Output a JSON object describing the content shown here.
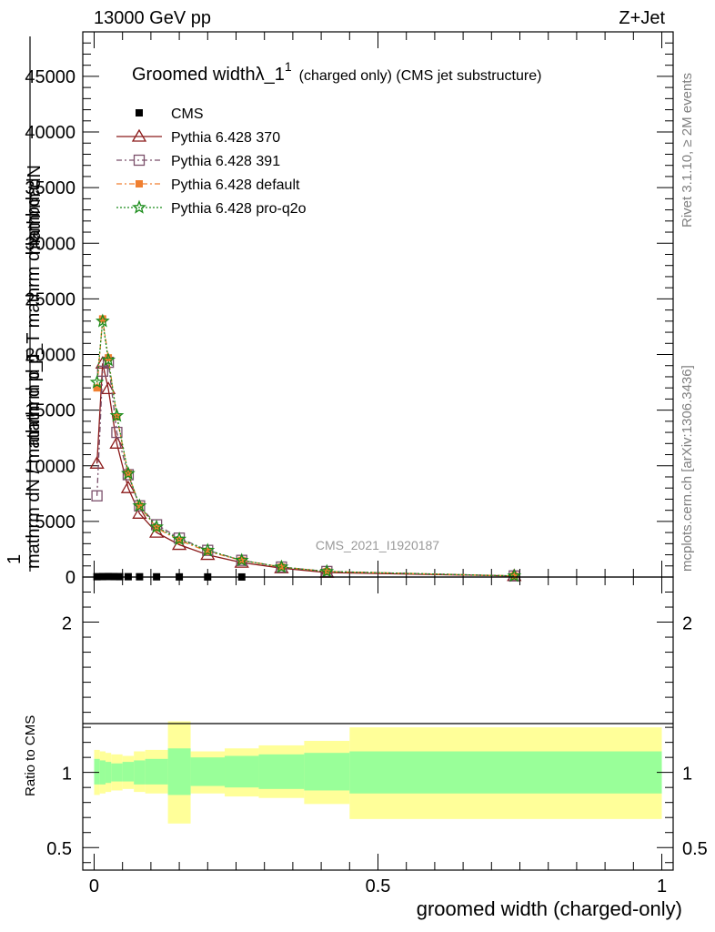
{
  "header": {
    "left": "13000 GeV pp",
    "right": "Z+Jet"
  },
  "side": {
    "rivet": "Rivet 3.1.10, ≥ 2M events",
    "mcplots": "mcplots.cern.ch [arXiv:1306.3436]"
  },
  "chart_data": [
    {
      "type": "line",
      "title": "Groomed width",
      "title_symbol": "λ_1",
      "title_sup": "1",
      "title_suffix": "(charged only) (CMS jet substructure)",
      "watermark": "CMS_2021_I1920187",
      "ylabel_numerator": "1",
      "ylabel_top": "mathrm dN",
      "ylabel_mid": "mathrm d p_T mathrm d lambda",
      "ylabel_bottom": "mathrm dN / mathrm d p_T",
      "ylabel_bottom2": "mathrm dN / mathrm d p_T",
      "xlim": [
        -0.02,
        1.02
      ],
      "ylim": [
        0,
        49000
      ],
      "yticks": [
        0,
        5000,
        10000,
        15000,
        20000,
        25000,
        30000,
        35000,
        40000,
        45000
      ],
      "ytick_labels": [
        "0",
        "5000",
        "10000",
        "15000",
        "20000",
        "25000",
        "30000",
        "35000",
        "40000",
        "45000"
      ],
      "legend_position": "top-left",
      "series": [
        {
          "name": "CMS",
          "color": "#000000",
          "marker": "square",
          "x": [
            0.005,
            0.015,
            0.025,
            0.035,
            0.045,
            0.06,
            0.08,
            0.11,
            0.15,
            0.2,
            0.26
          ],
          "y": [
            30,
            40,
            45,
            40,
            35,
            30,
            25,
            20,
            15,
            10,
            5
          ]
        },
        {
          "name": "Pythia 6.428 370",
          "color": "#8b1a1a",
          "marker": "triangle-open",
          "x": [
            0.005,
            0.015,
            0.025,
            0.04,
            0.06,
            0.08,
            0.11,
            0.15,
            0.2,
            0.26,
            0.33,
            0.41,
            0.74
          ],
          "y": [
            10200,
            19200,
            16900,
            12000,
            8000,
            5700,
            4000,
            2900,
            2000,
            1300,
            800,
            400,
            100
          ]
        },
        {
          "name": "Pythia 6.428 391",
          "color": "#7a4f6a",
          "marker": "square-open",
          "x": [
            0.005,
            0.015,
            0.025,
            0.04,
            0.06,
            0.08,
            0.11,
            0.15,
            0.2,
            0.26,
            0.33,
            0.41,
            0.74
          ],
          "y": [
            7300,
            18500,
            19300,
            13000,
            9200,
            6400,
            4700,
            3500,
            2400,
            1500,
            900,
            500,
            100
          ]
        },
        {
          "name": "Pythia 6.428 default",
          "color": "#f07f30",
          "marker": "square-filled",
          "x": [
            0.005,
            0.015,
            0.025,
            0.04,
            0.06,
            0.08,
            0.11,
            0.15,
            0.2,
            0.26,
            0.33,
            0.41,
            0.74
          ],
          "y": [
            17000,
            23200,
            19700,
            14400,
            9300,
            6400,
            4400,
            3300,
            2300,
            1500,
            900,
            500,
            100
          ]
        },
        {
          "name": "Pythia 6.428 pro-q2o",
          "color": "#1a8c1a",
          "marker": "star",
          "x": [
            0.005,
            0.015,
            0.025,
            0.04,
            0.06,
            0.08,
            0.11,
            0.15,
            0.2,
            0.26,
            0.33,
            0.41,
            0.74
          ],
          "y": [
            17500,
            23000,
            19500,
            14500,
            9300,
            6400,
            4500,
            3400,
            2400,
            1500,
            900,
            500,
            100
          ]
        }
      ]
    },
    {
      "type": "area",
      "ylabel": "Ratio to CMS",
      "xlabel": "groomed width (charged-only)",
      "xlim": [
        -0.02,
        1.02
      ],
      "ylim": [
        0.35,
        2.3
      ],
      "xticks": [
        0,
        0.5,
        1
      ],
      "xtick_labels": [
        "0",
        "0.5",
        "1"
      ],
      "yticks": [
        0.5,
        1,
        2
      ],
      "ytick_labels": [
        "0.5",
        "1",
        "2"
      ],
      "bin_edges": [
        0,
        0.01,
        0.02,
        0.03,
        0.05,
        0.07,
        0.09,
        0.13,
        0.17,
        0.23,
        0.29,
        0.37,
        0.45,
        1.0
      ],
      "stat_band_lo": [
        0.92,
        0.92,
        0.93,
        0.94,
        0.94,
        0.92,
        0.92,
        0.85,
        0.91,
        0.9,
        0.89,
        0.88,
        0.86
      ],
      "stat_band_hi": [
        1.09,
        1.08,
        1.07,
        1.06,
        1.07,
        1.08,
        1.09,
        1.16,
        1.1,
        1.11,
        1.12,
        1.13,
        1.14
      ],
      "total_band_lo": [
        0.85,
        0.86,
        0.87,
        0.88,
        0.89,
        0.87,
        0.86,
        0.66,
        0.86,
        0.84,
        0.83,
        0.79,
        0.69
      ],
      "total_band_hi": [
        1.15,
        1.14,
        1.13,
        1.12,
        1.11,
        1.14,
        1.15,
        1.34,
        1.14,
        1.16,
        1.18,
        1.21,
        1.3
      ],
      "stat_color": "#99ff99",
      "total_color": "#ffff99"
    }
  ]
}
